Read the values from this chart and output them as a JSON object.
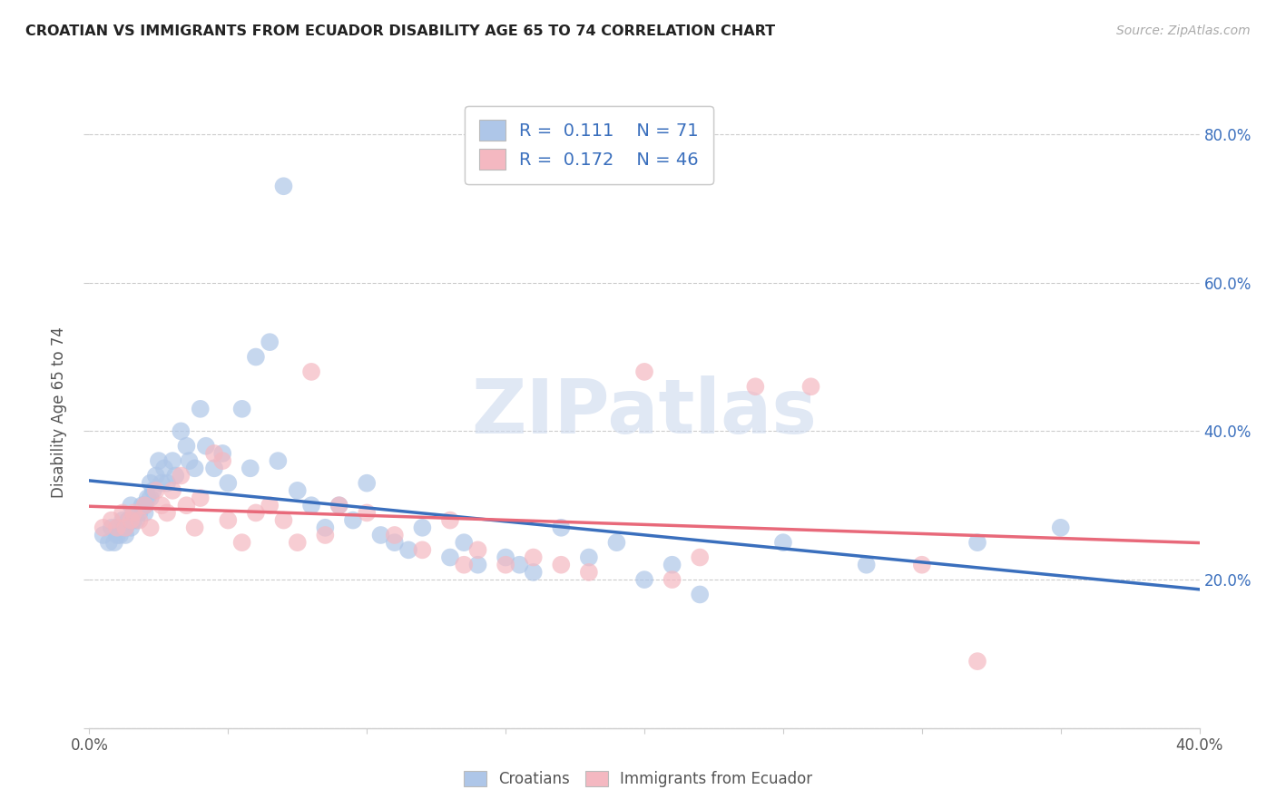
{
  "title": "CROATIAN VS IMMIGRANTS FROM ECUADOR DISABILITY AGE 65 TO 74 CORRELATION CHART",
  "source": "Source: ZipAtlas.com",
  "ylabel": "Disability Age 65 to 74",
  "watermark": "ZIPatlas",
  "legend_label1": "Croatians",
  "legend_label2": "Immigrants from Ecuador",
  "R1": 0.111,
  "N1": 71,
  "R2": 0.172,
  "N2": 46,
  "color_blue": "#aec6e8",
  "color_pink": "#f4b8c1",
  "line_color_blue": "#3a6fbd",
  "line_color_pink": "#e8697a",
  "xmin": 0.0,
  "xmax": 0.4,
  "ymin": 0.0,
  "ymax": 0.85,
  "xticks": [
    0.0,
    0.05,
    0.1,
    0.15,
    0.2,
    0.25,
    0.3,
    0.35,
    0.4
  ],
  "yticks": [
    0.0,
    0.2,
    0.4,
    0.6,
    0.8
  ],
  "ytick_labels": [
    "",
    "20.0%",
    "40.0%",
    "60.0%",
    "80.0%"
  ],
  "croatian_x": [
    0.005,
    0.007,
    0.008,
    0.009,
    0.01,
    0.01,
    0.011,
    0.012,
    0.013,
    0.013,
    0.014,
    0.015,
    0.015,
    0.016,
    0.017,
    0.018,
    0.019,
    0.02,
    0.02,
    0.021,
    0.022,
    0.022,
    0.023,
    0.024,
    0.025,
    0.026,
    0.027,
    0.028,
    0.03,
    0.031,
    0.033,
    0.035,
    0.036,
    0.038,
    0.04,
    0.042,
    0.045,
    0.048,
    0.05,
    0.055,
    0.058,
    0.06,
    0.065,
    0.068,
    0.07,
    0.075,
    0.08,
    0.085,
    0.09,
    0.095,
    0.1,
    0.105,
    0.11,
    0.115,
    0.12,
    0.13,
    0.135,
    0.14,
    0.15,
    0.155,
    0.16,
    0.17,
    0.18,
    0.19,
    0.2,
    0.21,
    0.22,
    0.25,
    0.28,
    0.32,
    0.35
  ],
  "croatian_y": [
    0.26,
    0.25,
    0.27,
    0.25,
    0.26,
    0.27,
    0.26,
    0.28,
    0.27,
    0.26,
    0.28,
    0.3,
    0.27,
    0.28,
    0.28,
    0.29,
    0.3,
    0.3,
    0.29,
    0.31,
    0.33,
    0.31,
    0.32,
    0.34,
    0.36,
    0.33,
    0.35,
    0.33,
    0.36,
    0.34,
    0.4,
    0.38,
    0.36,
    0.35,
    0.43,
    0.38,
    0.35,
    0.37,
    0.33,
    0.43,
    0.35,
    0.5,
    0.52,
    0.36,
    0.73,
    0.32,
    0.3,
    0.27,
    0.3,
    0.28,
    0.33,
    0.26,
    0.25,
    0.24,
    0.27,
    0.23,
    0.25,
    0.22,
    0.23,
    0.22,
    0.21,
    0.27,
    0.23,
    0.25,
    0.2,
    0.22,
    0.18,
    0.25,
    0.22,
    0.25,
    0.27
  ],
  "ecuador_x": [
    0.005,
    0.008,
    0.01,
    0.012,
    0.013,
    0.015,
    0.016,
    0.018,
    0.02,
    0.022,
    0.024,
    0.026,
    0.028,
    0.03,
    0.033,
    0.035,
    0.038,
    0.04,
    0.045,
    0.048,
    0.05,
    0.055,
    0.06,
    0.065,
    0.07,
    0.075,
    0.08,
    0.085,
    0.09,
    0.1,
    0.11,
    0.12,
    0.13,
    0.135,
    0.14,
    0.15,
    0.16,
    0.17,
    0.18,
    0.2,
    0.21,
    0.22,
    0.24,
    0.26,
    0.3,
    0.32
  ],
  "ecuador_y": [
    0.27,
    0.28,
    0.27,
    0.29,
    0.27,
    0.28,
    0.29,
    0.28,
    0.3,
    0.27,
    0.32,
    0.3,
    0.29,
    0.32,
    0.34,
    0.3,
    0.27,
    0.31,
    0.37,
    0.36,
    0.28,
    0.25,
    0.29,
    0.3,
    0.28,
    0.25,
    0.48,
    0.26,
    0.3,
    0.29,
    0.26,
    0.24,
    0.28,
    0.22,
    0.24,
    0.22,
    0.23,
    0.22,
    0.21,
    0.48,
    0.2,
    0.23,
    0.46,
    0.46,
    0.22,
    0.09
  ]
}
